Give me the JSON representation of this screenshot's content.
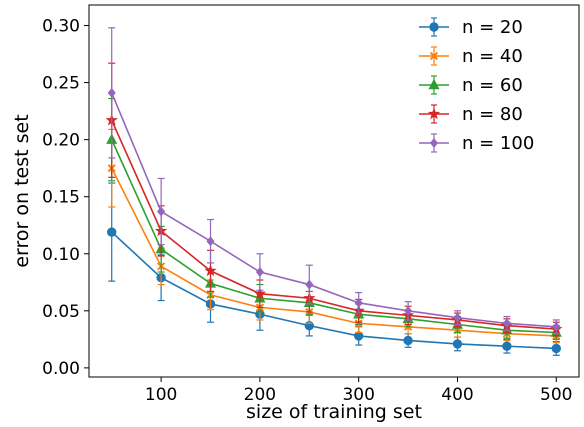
{
  "chart_data": {
    "type": "line",
    "xlabel": "size of training set",
    "ylabel": "error on test set",
    "xlim": [
      27,
      523
    ],
    "ylim": [
      -0.008,
      0.318
    ],
    "x_ticks": [
      100,
      200,
      300,
      400,
      500
    ],
    "y_ticks": [
      0.0,
      0.05,
      0.1,
      0.15,
      0.2,
      0.25,
      0.3
    ],
    "y_tick_labels": [
      "0.00",
      "0.05",
      "0.10",
      "0.15",
      "0.20",
      "0.25",
      "0.30"
    ],
    "grid": false,
    "legend_position": "top-right",
    "x": [
      50,
      100,
      150,
      200,
      250,
      300,
      350,
      400,
      450,
      500
    ],
    "series": [
      {
        "name": "n = 20",
        "color": "#1f77b4",
        "marker": "circle",
        "values": [
          0.119,
          0.079,
          0.056,
          0.047,
          0.037,
          0.028,
          0.024,
          0.021,
          0.019,
          0.017
        ],
        "errors": [
          0.043,
          0.02,
          0.016,
          0.014,
          0.009,
          0.008,
          0.006,
          0.006,
          0.006,
          0.006
        ]
      },
      {
        "name": "n = 40",
        "color": "#ff7f0e",
        "marker": "x",
        "values": [
          0.175,
          0.089,
          0.064,
          0.053,
          0.049,
          0.039,
          0.036,
          0.033,
          0.03,
          0.028
        ],
        "errors": [
          0.034,
          0.016,
          0.013,
          0.011,
          0.01,
          0.008,
          0.006,
          0.006,
          0.006,
          0.006
        ]
      },
      {
        "name": "n = 60",
        "color": "#2ca02c",
        "marker": "triangle",
        "values": [
          0.2,
          0.104,
          0.074,
          0.061,
          0.057,
          0.047,
          0.043,
          0.038,
          0.033,
          0.031
        ],
        "errors": [
          0.036,
          0.02,
          0.012,
          0.012,
          0.01,
          0.009,
          0.007,
          0.007,
          0.007,
          0.006
        ]
      },
      {
        "name": "n = 80",
        "color": "#d62728",
        "marker": "star",
        "values": [
          0.217,
          0.12,
          0.085,
          0.065,
          0.061,
          0.05,
          0.046,
          0.042,
          0.037,
          0.034
        ],
        "errors": [
          0.05,
          0.022,
          0.018,
          0.012,
          0.012,
          0.01,
          0.008,
          0.006,
          0.006,
          0.006
        ]
      },
      {
        "name": "n = 100",
        "color": "#9467bd",
        "marker": "diamond",
        "values": [
          0.241,
          0.137,
          0.111,
          0.084,
          0.073,
          0.057,
          0.05,
          0.044,
          0.039,
          0.036
        ],
        "errors": [
          0.057,
          0.029,
          0.019,
          0.016,
          0.017,
          0.009,
          0.008,
          0.006,
          0.006,
          0.006
        ]
      }
    ]
  }
}
